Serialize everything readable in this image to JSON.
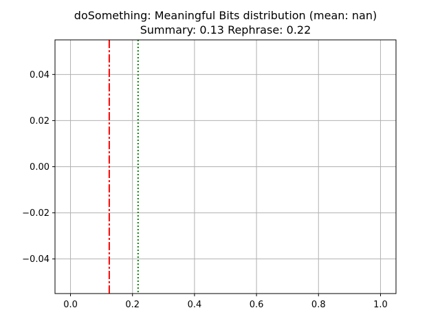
{
  "chart_data": {
    "type": "line",
    "title": "doSomething: Meaningful Bits distribution (mean: nan)",
    "subtitle": "Summary: 0.13 Rephrase: 0.22",
    "xlabel": "",
    "ylabel": "",
    "xlim": [
      -0.05,
      1.05
    ],
    "ylim": [
      -0.055,
      0.055
    ],
    "xticks": [
      0.0,
      0.2,
      0.4,
      0.6,
      0.8,
      1.0
    ],
    "xtick_labels": [
      "0.0",
      "0.2",
      "0.4",
      "0.6",
      "0.8",
      "1.0"
    ],
    "yticks": [
      0.04,
      0.02,
      0.0,
      -0.02,
      -0.04
    ],
    "ytick_labels": [
      "0.04",
      "0.02",
      "0.00",
      "−0.02",
      "−0.04"
    ],
    "grid": true,
    "series": [],
    "reference_lines": [
      {
        "orientation": "vertical",
        "x": 0.125,
        "style": "dashdot",
        "color": "#ff0000"
      },
      {
        "orientation": "vertical",
        "x": 0.218,
        "style": "dotted",
        "color": "#008000"
      }
    ]
  }
}
